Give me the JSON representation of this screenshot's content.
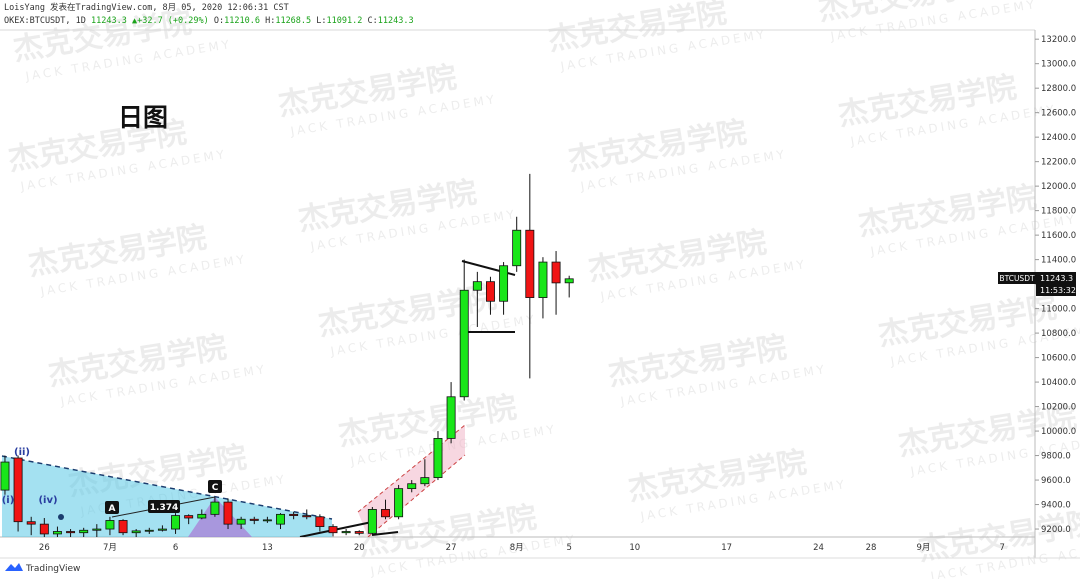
{
  "chart_data": {
    "type": "candlestick",
    "header": {
      "line1": "LoisYang 发表在TradingView.com, 8月 05, 2020 12:06:31 CST",
      "symbol": "OKEX:BTCUSDT, 1D",
      "arrow": "▲",
      "change": "+32.7 (+0.29%)",
      "o_label": "O:",
      "h_label": "H:",
      "l_label": "L:",
      "c_label": "C:"
    },
    "title": "日图",
    "annotations": [
      "(ii)",
      "(i)",
      "(iv)",
      "A",
      "1.374",
      "C"
    ],
    "watermark": {
      "cn": "杰克交易学院",
      "en": "JACK TRADING ACADEMY"
    },
    "countdown": "11:53:32",
    "brand": "TradingView",
    "categories": [
      null,
      null,
      null,
      "26",
      null,
      null,
      null,
      null,
      "7月",
      null,
      null,
      null,
      null,
      "6",
      null,
      null,
      null,
      null,
      null,
      null,
      "13",
      null,
      null,
      null,
      null,
      null,
      null,
      "20",
      null,
      null,
      null,
      null,
      null,
      null,
      "27",
      null,
      null,
      null,
      null,
      "8月",
      null,
      null,
      null,
      "5",
      null,
      null,
      null,
      null,
      "10",
      null,
      null,
      null,
      null,
      null,
      null,
      "17",
      null,
      null,
      null,
      null,
      null,
      null,
      "24",
      null,
      null,
      null,
      "28",
      null,
      null,
      null,
      "9月",
      null,
      null,
      null,
      null,
      null,
      "7",
      null,
      null
    ],
    "series": [
      {
        "name": "BTCUSDT",
        "up_color": "#19e619",
        "down_color": "#f01414",
        "open": [
          9518,
          9780,
          9260,
          9240,
          9160,
          9180,
          9170,
          9190,
          9200,
          9270,
          9170,
          9185,
          9190,
          9200,
          9310,
          9290,
          9320,
          9420,
          9240,
          9280,
          9270,
          9240,
          9320,
          9310,
          9300,
          9220,
          9170,
          9180,
          9165,
          9360,
          9300,
          9530,
          9570,
          9620,
          9940,
          10280,
          11150,
          11220,
          11060,
          11350,
          11640,
          11090,
          11380,
          11210.6,
          null,
          null,
          null,
          null,
          null,
          null,
          null,
          null,
          null,
          null,
          null,
          null,
          null,
          null,
          null,
          null,
          null,
          null,
          null,
          null,
          null,
          null,
          null,
          null,
          null,
          null,
          null,
          null,
          null,
          null,
          null,
          null,
          null,
          null,
          null
        ],
        "high": [
          9800,
          9800,
          9300,
          9290,
          9220,
          9200,
          9210,
          9240,
          9300,
          9280,
          9200,
          9210,
          9230,
          9330,
          9320,
          9360,
          9460,
          9450,
          9300,
          9300,
          9300,
          9330,
          9340,
          9360,
          9320,
          9240,
          9200,
          9190,
          9380,
          9440,
          9560,
          9600,
          9770,
          10000,
          10400,
          11400,
          11300,
          11260,
          11380,
          11750,
          12100,
          11420,
          11470,
          11268.5,
          null,
          null,
          null,
          null,
          null,
          null,
          null,
          null,
          null,
          null,
          null,
          null,
          null,
          null,
          null,
          null,
          null,
          null,
          null,
          null,
          null,
          null,
          null,
          null,
          null,
          null,
          null,
          null,
          null,
          null,
          null,
          null,
          null,
          null,
          null
        ],
        "low": [
          9480,
          9180,
          9150,
          9100,
          9020,
          9100,
          9100,
          9120,
          9150,
          9150,
          9120,
          9160,
          9180,
          9160,
          9240,
          9280,
          9300,
          9200,
          9200,
          9240,
          9250,
          9200,
          9280,
          9280,
          9180,
          9140,
          9150,
          9150,
          9150,
          9280,
          9280,
          9500,
          9550,
          9600,
          9900,
          10250,
          10850,
          10950,
          10950,
          11300,
          10430,
          10920,
          10950,
          11091.2,
          null,
          null,
          null,
          null,
          null,
          null,
          null,
          null,
          null,
          null,
          null,
          null,
          null,
          null,
          null,
          null,
          null,
          null,
          null,
          null,
          null,
          null,
          null,
          null,
          null,
          null,
          null,
          null,
          null,
          null,
          null,
          null,
          null,
          null,
          null
        ],
        "close": [
          9747,
          9260,
          9240,
          9160,
          9180,
          9170,
          9190,
          9200,
          9270,
          9170,
          9185,
          9190,
          9200,
          9310,
          9290,
          9320,
          9420,
          9240,
          9280,
          9270,
          9275,
          9320,
          9310,
          9300,
          9220,
          9170,
          9180,
          9165,
          9360,
          9300,
          9530,
          9570,
          9620,
          9940,
          10280,
          11150,
          11220,
          11060,
          11350,
          11640,
          11090,
          11380,
          11210,
          11243.3,
          null,
          null,
          null,
          null,
          null,
          null,
          null,
          null,
          null,
          null,
          null,
          null,
          null,
          null,
          null,
          null,
          null,
          null,
          null,
          null,
          null,
          null,
          null,
          null,
          null,
          null,
          null,
          null,
          null,
          null,
          null,
          null,
          null,
          null,
          null
        ]
      }
    ],
    "ylim": [
      9135,
      13275
    ],
    "yticks": [
      {
        "value": 9200,
        "label": "9200.0"
      },
      {
        "value": 9400,
        "label": "9400.0"
      },
      {
        "value": 9600,
        "label": "9600.0"
      },
      {
        "value": 9800,
        "label": "9800.0"
      },
      {
        "value": 10000,
        "label": "10000.0"
      },
      {
        "value": 10200,
        "label": "10200.0"
      },
      {
        "value": 10400,
        "label": "10400.0"
      },
      {
        "value": 10600,
        "label": "10600.0"
      },
      {
        "value": 10800,
        "label": "10800.0"
      },
      {
        "value": 11000,
        "label": "11000.0"
      },
      {
        "value": 11200,
        "label": "11200.0"
      },
      {
        "value": 11400,
        "label": "11400.0"
      },
      {
        "value": 11600,
        "label": "11600.0"
      },
      {
        "value": 11800,
        "label": "11800.0"
      },
      {
        "value": 12000,
        "label": "12000.0"
      },
      {
        "value": 12200,
        "label": "12200.0"
      },
      {
        "value": 12400,
        "label": "12400.0"
      },
      {
        "value": 12600,
        "label": "12600.0"
      },
      {
        "value": 12800,
        "label": "12800.0"
      },
      {
        "value": 13000,
        "label": "13000.0"
      },
      {
        "value": 13200,
        "label": "13200.0"
      }
    ],
    "grid": false
  }
}
